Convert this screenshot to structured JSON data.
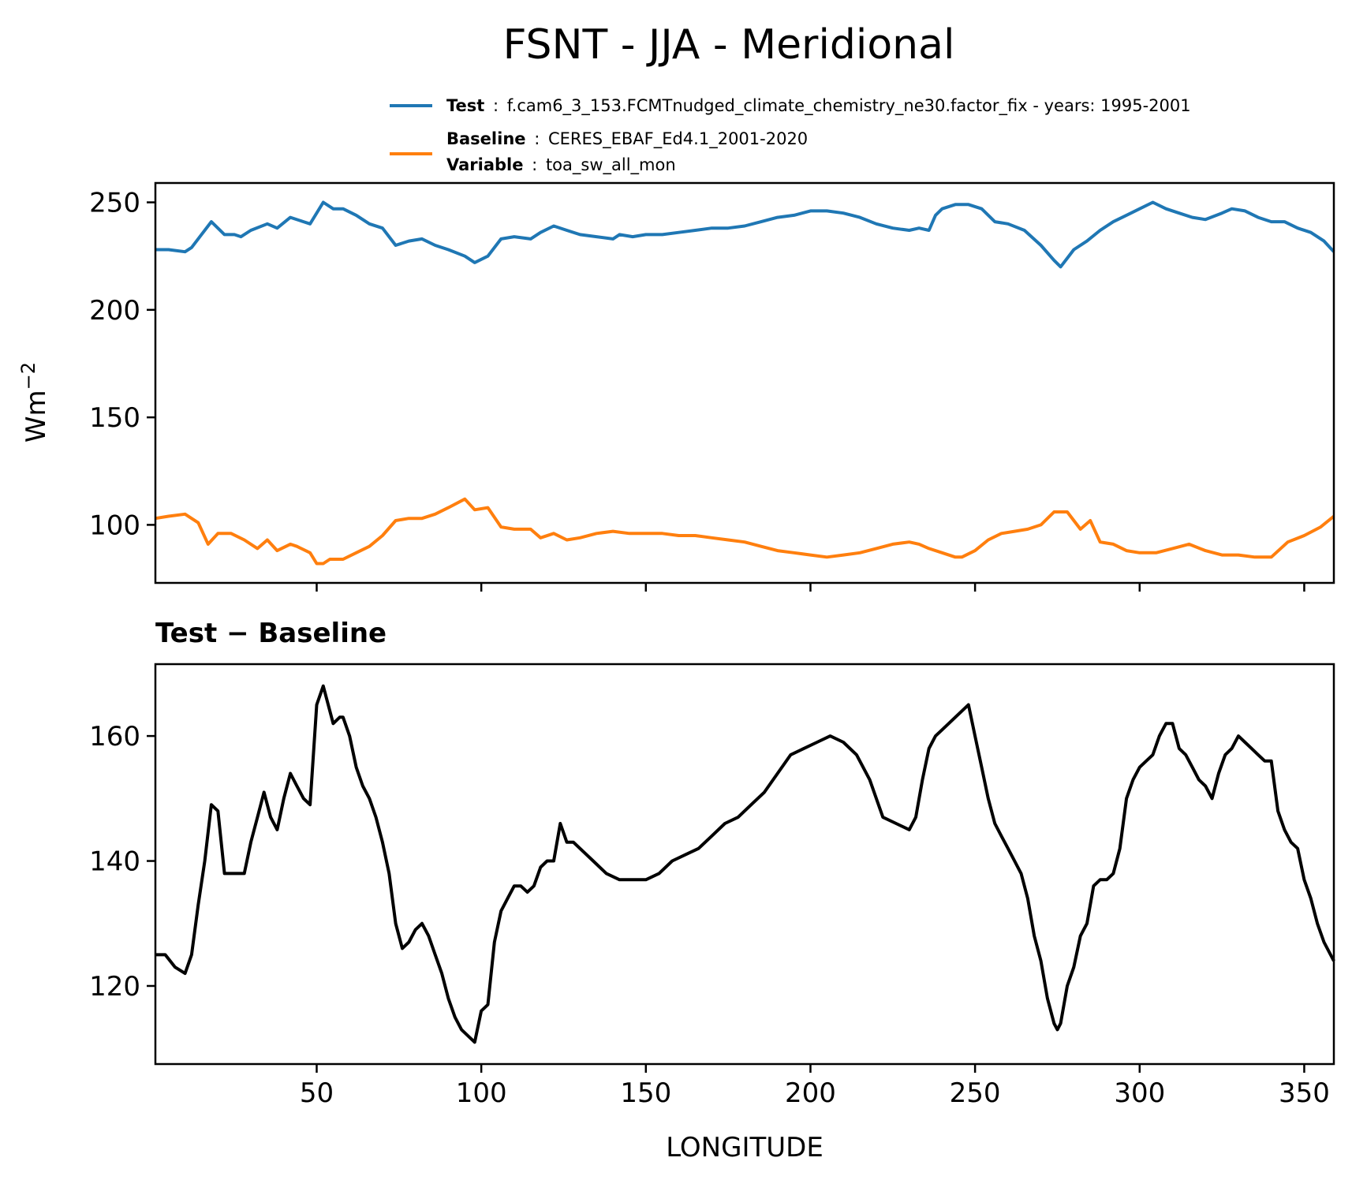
{
  "figure": {
    "title": "FSNT - JJA - Meridional"
  },
  "legend": {
    "test_key": "Test",
    "test_value": "f.cam6_3_153.FCMTnudged_climate_chemistry_ne30.factor_fix - years: 1995-2001",
    "baseline_key": "Baseline",
    "baseline_value": "CERES_EBAF_Ed4.1_2001-2020",
    "variable_key": "Variable",
    "variable_value": "toa_sw_all_mon",
    "sep": ":"
  },
  "colors": {
    "test": "#1f77b4",
    "baseline": "#ff7f0e",
    "diff": "#000000"
  },
  "chart_data": [
    {
      "type": "line",
      "ylabel": "Wm",
      "ylabel_exponent": "−2",
      "xlim": [
        1,
        359
      ],
      "ylim": [
        73,
        259
      ],
      "xticks": [
        50,
        100,
        150,
        200,
        250,
        300,
        350
      ],
      "xtick_labels_visible": false,
      "yticks": [
        100,
        150,
        200,
        250
      ],
      "ytick_labels": [
        "100",
        "150",
        "200",
        "250"
      ],
      "grid": false,
      "series": [
        {
          "name": "Test",
          "color": "#1f77b4",
          "x": [
            1,
            5,
            10,
            12,
            15,
            18,
            22,
            25,
            27,
            30,
            35,
            38,
            42,
            46,
            48,
            52,
            55,
            58,
            62,
            66,
            70,
            74,
            78,
            82,
            86,
            90,
            95,
            98,
            102,
            106,
            110,
            115,
            118,
            122,
            126,
            130,
            135,
            140,
            142,
            146,
            150,
            155,
            160,
            165,
            170,
            175,
            180,
            185,
            190,
            195,
            200,
            205,
            210,
            215,
            220,
            225,
            230,
            233,
            236,
            238,
            240,
            244,
            248,
            252,
            256,
            260,
            265,
            270,
            274,
            276,
            278,
            280,
            284,
            288,
            292,
            296,
            300,
            304,
            308,
            312,
            316,
            320,
            325,
            328,
            332,
            336,
            340,
            344,
            348,
            352,
            356,
            359
          ],
          "values": [
            228,
            228,
            227,
            229,
            235,
            241,
            235,
            235,
            234,
            237,
            240,
            238,
            243,
            241,
            240,
            250,
            247,
            247,
            244,
            240,
            238,
            230,
            232,
            233,
            230,
            228,
            225,
            222,
            225,
            233,
            234,
            233,
            236,
            239,
            237,
            235,
            234,
            233,
            235,
            234,
            235,
            235,
            236,
            237,
            238,
            238,
            239,
            241,
            243,
            244,
            246,
            246,
            245,
            243,
            240,
            238,
            237,
            238,
            237,
            244,
            247,
            249,
            249,
            247,
            241,
            240,
            237,
            230,
            223,
            220,
            224,
            228,
            232,
            237,
            241,
            244,
            247,
            250,
            247,
            245,
            243,
            242,
            245,
            247,
            246,
            243,
            241,
            241,
            238,
            236,
            232,
            227
          ]
        },
        {
          "name": "Baseline",
          "color": "#ff7f0e",
          "x": [
            1,
            5,
            10,
            14,
            17,
            20,
            24,
            28,
            32,
            35,
            38,
            42,
            44,
            48,
            50,
            52,
            54,
            58,
            62,
            66,
            70,
            74,
            78,
            82,
            86,
            90,
            95,
            98,
            102,
            106,
            110,
            115,
            118,
            122,
            126,
            130,
            135,
            140,
            145,
            150,
            155,
            160,
            165,
            170,
            175,
            180,
            185,
            190,
            195,
            200,
            205,
            210,
            215,
            220,
            225,
            230,
            233,
            236,
            240,
            244,
            246,
            250,
            254,
            258,
            262,
            266,
            270,
            274,
            276,
            278,
            282,
            285,
            288,
            292,
            296,
            300,
            305,
            310,
            315,
            320,
            325,
            330,
            335,
            340,
            345,
            350,
            355,
            359
          ],
          "values": [
            103,
            104,
            105,
            101,
            91,
            96,
            96,
            93,
            89,
            93,
            88,
            91,
            90,
            87,
            82,
            82,
            84,
            84,
            87,
            90,
            95,
            102,
            103,
            103,
            105,
            108,
            112,
            107,
            108,
            99,
            98,
            98,
            94,
            96,
            93,
            94,
            96,
            97,
            96,
            96,
            96,
            95,
            95,
            94,
            93,
            92,
            90,
            88,
            87,
            86,
            85,
            86,
            87,
            89,
            91,
            92,
            91,
            89,
            87,
            85,
            85,
            88,
            93,
            96,
            97,
            98,
            100,
            106,
            106,
            106,
            98,
            102,
            92,
            91,
            88,
            87,
            87,
            89,
            91,
            88,
            86,
            86,
            85,
            85,
            92,
            95,
            99,
            104
          ]
        },
        {
          "name": "",
          "color": "#000000",
          "x": [
            1,
            4,
            7,
            10,
            12,
            14,
            16,
            18,
            20,
            22,
            24,
            26,
            28,
            30,
            32,
            34,
            36,
            38,
            40,
            42,
            44,
            46,
            48,
            50,
            52,
            53,
            55,
            57,
            58,
            60,
            62,
            64,
            66,
            68,
            70,
            72,
            74,
            76,
            78,
            80,
            82,
            84,
            86,
            88,
            90,
            92,
            94,
            96,
            98,
            100,
            102,
            104,
            106,
            108,
            110,
            112,
            114,
            116,
            118,
            120,
            122,
            124,
            126,
            128,
            130,
            134,
            138,
            142,
            146,
            150,
            154,
            158,
            162,
            166,
            170,
            174,
            178,
            182,
            186,
            190,
            194,
            198,
            202,
            206,
            210,
            214,
            218,
            222,
            226,
            230,
            232,
            234,
            236,
            238,
            240,
            242,
            244,
            246,
            248,
            250,
            252,
            254,
            256,
            258,
            260,
            262,
            264,
            266,
            268,
            270,
            272,
            274,
            275,
            276,
            277,
            278,
            280,
            282,
            284,
            286,
            288,
            290,
            292,
            294,
            296,
            298,
            300,
            302,
            304,
            306,
            308,
            310,
            312,
            314,
            316,
            318,
            320,
            322,
            324,
            326,
            328,
            330,
            332,
            334,
            336,
            338,
            340,
            342,
            344,
            346,
            348,
            350,
            352,
            354,
            356,
            359
          ],
          "values": [
            125,
            125,
            123,
            122,
            125,
            133,
            140,
            149,
            148,
            138,
            138,
            138,
            138,
            143,
            147,
            151,
            147,
            145,
            150,
            154,
            152,
            150,
            149,
            165,
            168,
            166,
            162,
            163,
            163,
            160,
            155,
            152,
            150,
            147,
            143,
            138,
            130,
            126,
            127,
            129,
            130,
            128,
            125,
            122,
            118,
            115,
            113,
            112,
            111,
            116,
            117,
            127,
            132,
            134,
            136,
            136,
            135,
            136,
            139,
            140,
            140,
            146,
            143,
            143,
            142,
            140,
            138,
            137,
            137,
            137,
            138,
            140,
            141,
            142,
            144,
            146,
            147,
            149,
            151,
            154,
            157,
            158,
            159,
            160,
            159,
            157,
            153,
            147,
            146,
            145,
            147,
            153,
            158,
            160,
            161,
            162,
            163,
            164,
            165,
            160,
            155,
            150,
            146,
            144,
            142,
            140,
            138,
            134,
            128,
            124,
            118,
            114,
            113,
            114,
            117,
            120,
            123,
            128,
            130,
            136,
            137,
            137,
            138,
            142,
            150,
            153,
            155,
            156,
            157,
            160,
            162,
            162,
            158,
            157,
            155,
            153,
            152,
            150,
            154,
            157,
            158,
            160,
            159,
            158,
            157,
            156,
            156,
            148,
            145,
            143,
            142,
            137,
            134,
            130,
            127,
            124
          ]
        }
      ]
    },
    {
      "type": "line",
      "title": "Test − Baseline",
      "xlabel": "LONGITUDE",
      "xlim": [
        1,
        359
      ],
      "ylim": [
        107.5,
        171.5
      ],
      "xticks": [
        50,
        100,
        150,
        200,
        250,
        300,
        350
      ],
      "xtick_labels": [
        "50",
        "100",
        "150",
        "200",
        "250",
        "300",
        "350"
      ],
      "yticks": [
        120,
        140,
        160
      ],
      "ytick_labels": [
        "120",
        "140",
        "160"
      ],
      "grid": false
    }
  ]
}
